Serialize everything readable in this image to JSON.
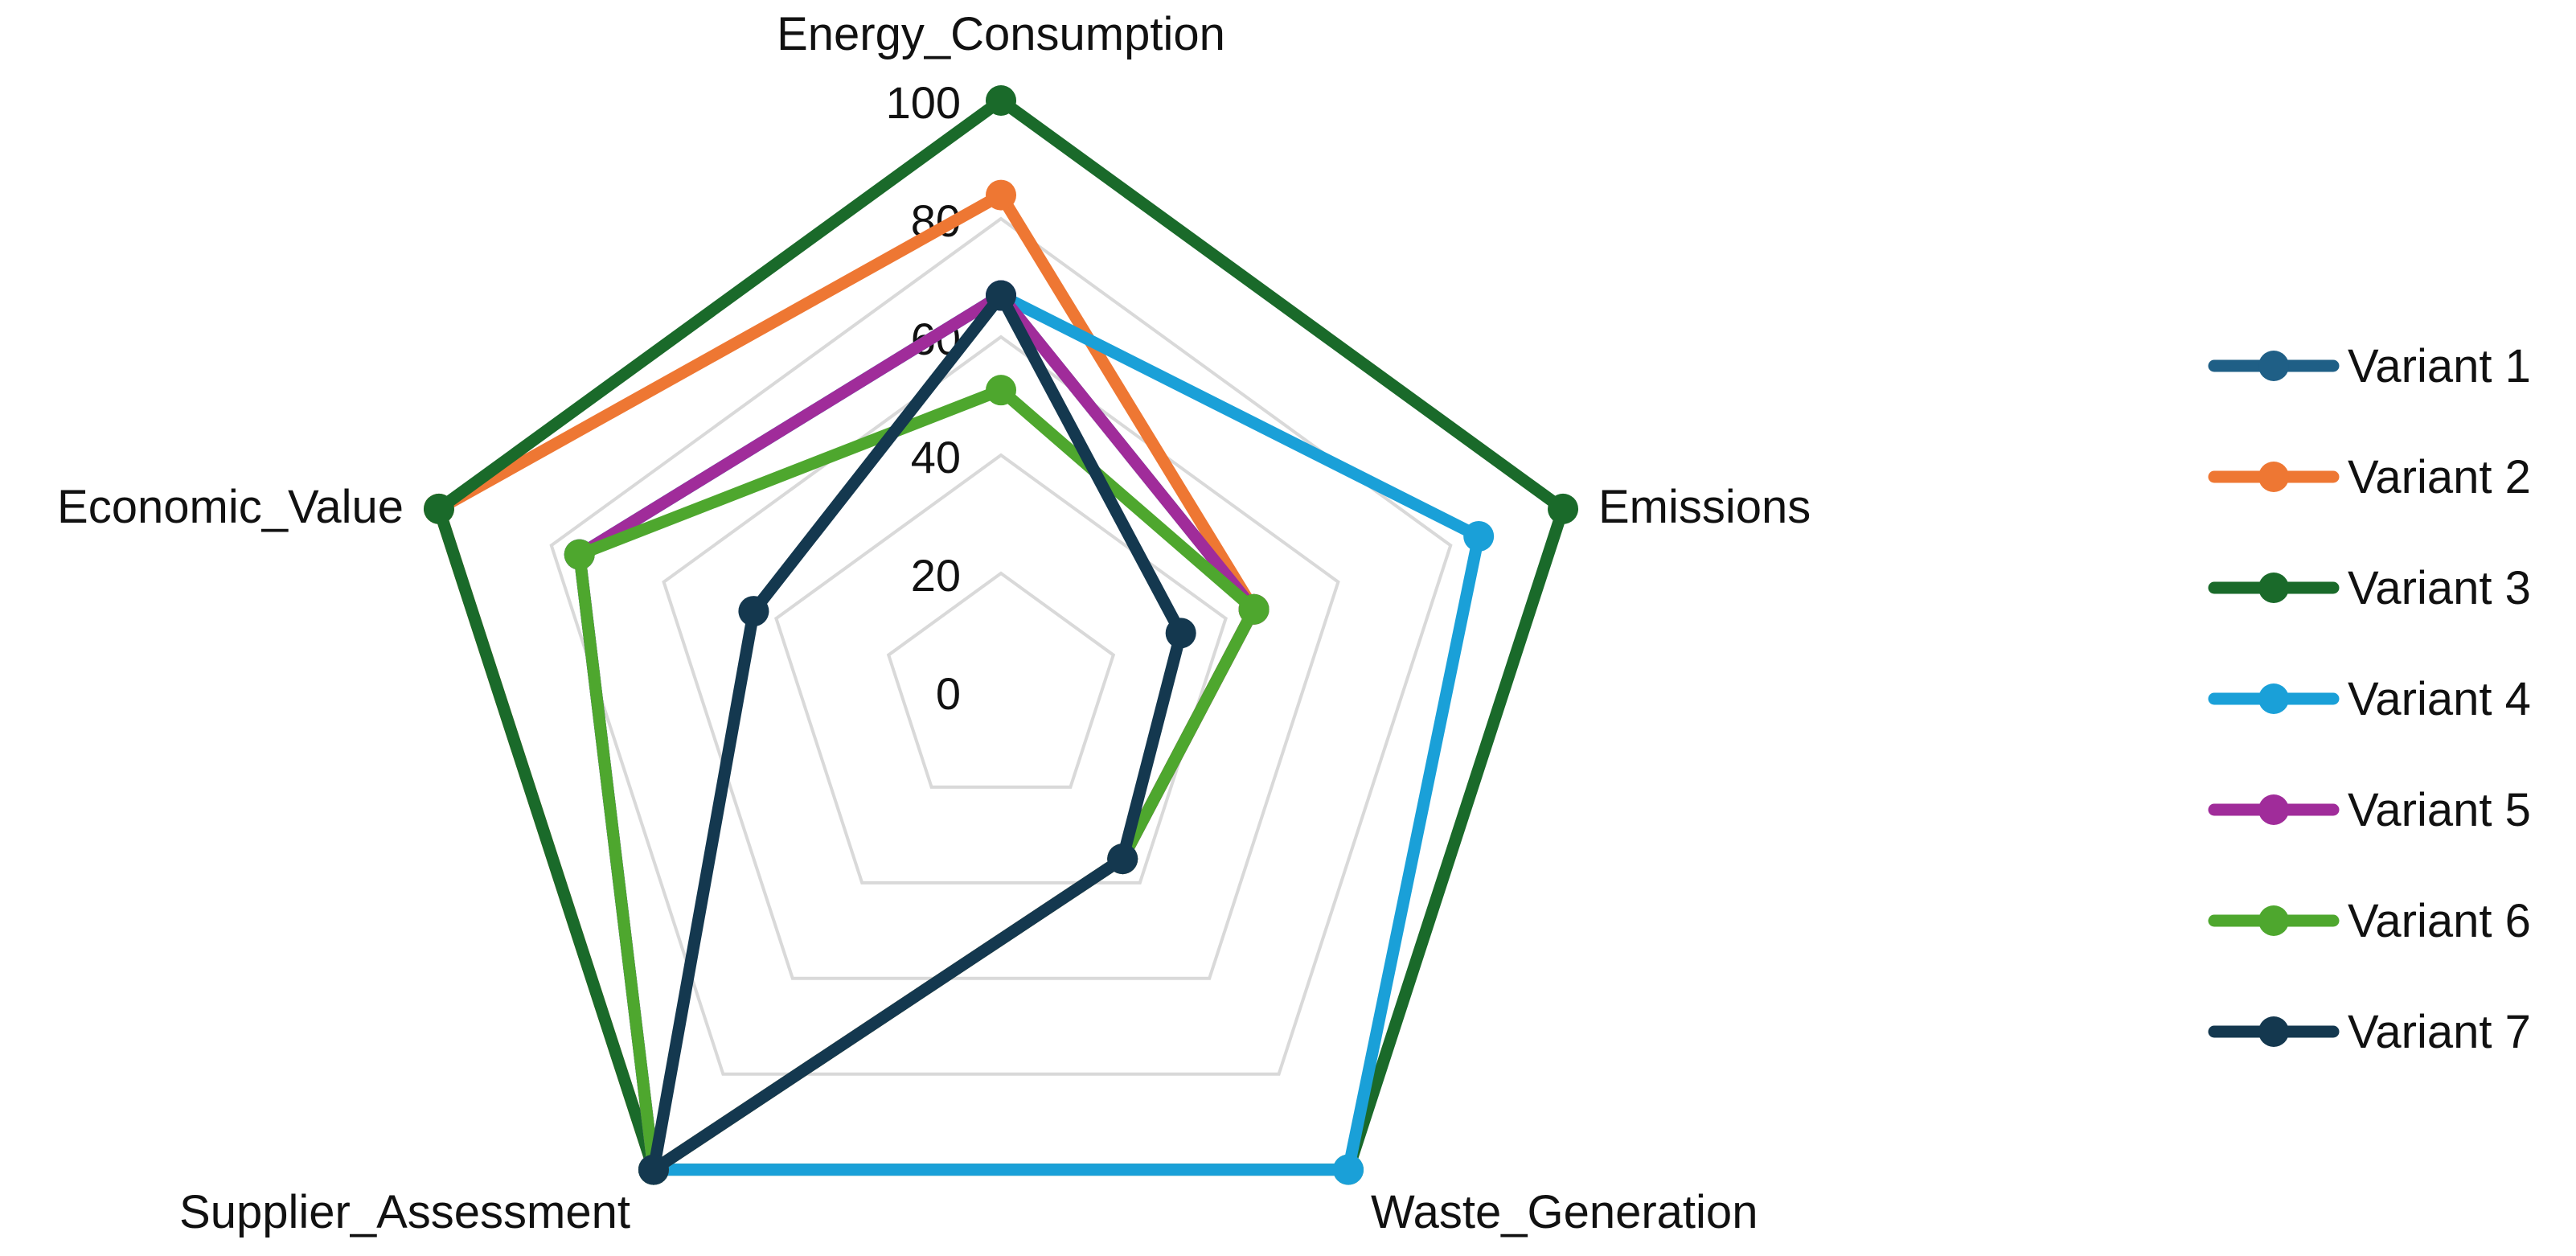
{
  "chart_data": {
    "type": "radar",
    "title": "",
    "axes": [
      "Energy_Consumption",
      "Emissions",
      "Waste_Generation",
      "Supplier_Assessment",
      "Economic_Value"
    ],
    "r_range": [
      0,
      100
    ],
    "ticks": [
      0,
      20,
      40,
      60,
      80,
      100
    ],
    "grid": true,
    "legend_position": "right",
    "series": [
      {
        "name": "Variant 1",
        "color": "#1f5f86",
        "values": [
          67,
          45,
          35,
          100,
          75
        ]
      },
      {
        "name": "Variant 2",
        "color": "#ee7733",
        "values": [
          84,
          45,
          35,
          100,
          100
        ]
      },
      {
        "name": "Variant 3",
        "color": "#1a6a2a",
        "values": [
          100,
          100,
          100,
          100,
          100
        ]
      },
      {
        "name": "Variant 4",
        "color": "#1aa0d8",
        "values": [
          67,
          85,
          100,
          100,
          75
        ]
      },
      {
        "name": "Variant 5",
        "color": "#a02c9a",
        "values": [
          67,
          45,
          35,
          100,
          75
        ]
      },
      {
        "name": "Variant 6",
        "color": "#4ea72e",
        "values": [
          51,
          45,
          35,
          100,
          75
        ]
      },
      {
        "name": "Variant 7",
        "color": "#14384f",
        "values": [
          67,
          32,
          35,
          100,
          44
        ]
      }
    ]
  }
}
